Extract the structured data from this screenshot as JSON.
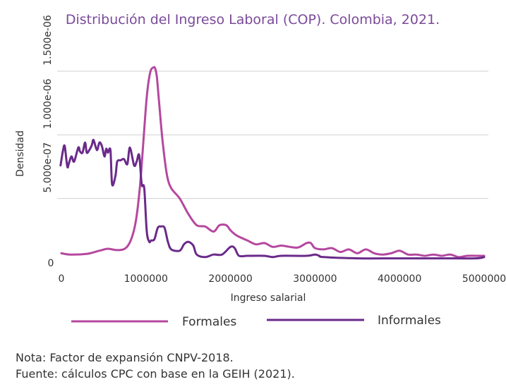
{
  "chart_data": {
    "type": "line",
    "title": "Distribución del Ingreso Laboral (COP). Colombia, 2021.",
    "xlabel": "Ingreso salarial",
    "ylabel": "Densidad",
    "xlim": [
      -50000,
      5050000
    ],
    "ylim": [
      0,
      1.5e-06
    ],
    "x_ticks": [
      0,
      1000000,
      2000000,
      3000000,
      4000000,
      5000000
    ],
    "x_tick_labels": [
      "0",
      "1000000",
      "2000000",
      "3000000",
      "4000000",
      "5000000"
    ],
    "y_ticks": [
      0,
      5e-07,
      1e-06,
      1.5e-06
    ],
    "y_tick_labels": [
      "0",
      "5.000e-07",
      "1.000e-06",
      "1.500e-06"
    ],
    "grid": true,
    "legend_position": "bottom",
    "series": [
      {
        "name": "Formales",
        "color": "#b5489f",
        "x": [
          0,
          100000,
          300000,
          450000,
          550000,
          650000,
          750000,
          820000,
          880000,
          930000,
          970000,
          1010000,
          1050000,
          1090000,
          1110000,
          1130000,
          1160000,
          1200000,
          1250000,
          1300000,
          1400000,
          1500000,
          1600000,
          1700000,
          1800000,
          1870000,
          1950000,
          2000000,
          2050000,
          2100000,
          2200000,
          2300000,
          2400000,
          2500000,
          2600000,
          2700000,
          2800000,
          2900000,
          2950000,
          3000000,
          3100000,
          3200000,
          3300000,
          3400000,
          3500000,
          3600000,
          3700000,
          3800000,
          3900000,
          4000000,
          4100000,
          4200000,
          4300000,
          4400000,
          4500000,
          4600000,
          4700000,
          4800000,
          4900000,
          5000000
        ],
        "y": [
          7e-08,
          6e-08,
          6.5e-08,
          9e-08,
          1.05e-07,
          9.5e-08,
          1.05e-07,
          1.7e-07,
          3.2e-07,
          6e-07,
          9.5e-07,
          1.3e-06,
          1.49e-06,
          1.53e-06,
          1.52e-06,
          1.45e-06,
          1.22e-06,
          9.3e-07,
          6.8e-07,
          5.8e-07,
          5e-07,
          3.8e-07,
          2.9e-07,
          2.8e-07,
          2.4e-07,
          2.9e-07,
          2.9e-07,
          2.5e-07,
          2.2e-07,
          2e-07,
          1.7e-07,
          1.4e-07,
          1.5e-07,
          1.2e-07,
          1.3e-07,
          1.2e-07,
          1.15e-07,
          1.5e-07,
          1.5e-07,
          1.1e-07,
          1e-07,
          1.1e-07,
          8e-08,
          1e-07,
          7e-08,
          1e-07,
          7e-08,
          6e-08,
          7e-08,
          9e-08,
          6e-08,
          6e-08,
          5e-08,
          6e-08,
          5e-08,
          6e-08,
          4e-08,
          5e-08,
          5e-08,
          5e-08
        ]
      },
      {
        "name": "Informales",
        "color": "#6a2a8a",
        "x": [
          -10000,
          20000,
          40000,
          70000,
          90000,
          120000,
          150000,
          200000,
          220000,
          250000,
          280000,
          300000,
          330000,
          360000,
          380000,
          420000,
          450000,
          480000,
          510000,
          530000,
          550000,
          580000,
          600000,
          640000,
          660000,
          700000,
          740000,
          780000,
          810000,
          860000,
          890000,
          920000,
          950000,
          980000,
          1010000,
          1040000,
          1060000,
          1100000,
          1140000,
          1180000,
          1220000,
          1260000,
          1300000,
          1400000,
          1450000,
          1500000,
          1560000,
          1600000,
          1700000,
          1800000,
          1900000,
          2000000,
          2050000,
          2100000,
          2200000,
          2400000,
          2500000,
          2600000,
          2900000,
          3000000,
          3050000,
          3100000,
          3500000,
          4000000,
          4500000,
          4900000,
          5000000
        ],
        "y": [
          7.6e-07,
          8.8e-07,
          9.1e-07,
          7.5e-07,
          7.8e-07,
          8.3e-07,
          7.9e-07,
          9e-07,
          8.7e-07,
          8.6e-07,
          9.4e-07,
          8.6e-07,
          8.8e-07,
          9.2e-07,
          9.6e-07,
          8.8e-07,
          9.4e-07,
          9.1e-07,
          8.3e-07,
          8.9e-07,
          8.6e-07,
          8.8e-07,
          6.1e-07,
          6.8e-07,
          7.9e-07,
          8e-07,
          8.1e-07,
          7.7e-07,
          9e-07,
          7.6e-07,
          7.9e-07,
          8.4e-07,
          6.1e-07,
          5.8e-07,
          2.4e-07,
          1.6e-07,
          1.7e-07,
          1.8e-07,
          2.7e-07,
          2.8e-07,
          2.7e-07,
          1.6e-07,
          1e-07,
          9e-08,
          1.4e-07,
          1.6e-07,
          1.3e-07,
          6e-08,
          4e-08,
          6e-08,
          6e-08,
          1.2e-07,
          1.1e-07,
          5e-08,
          5e-08,
          5e-08,
          4e-08,
          5e-08,
          5e-08,
          6e-08,
          5e-08,
          4e-08,
          3e-08,
          3e-08,
          3e-08,
          3e-08,
          4e-08
        ]
      }
    ]
  },
  "notes": {
    "nota": "Nota: Factor de expansión CNPV-2018.",
    "fuente": "Fuente: cálculos CPC con base en la GEIH (2021)."
  }
}
